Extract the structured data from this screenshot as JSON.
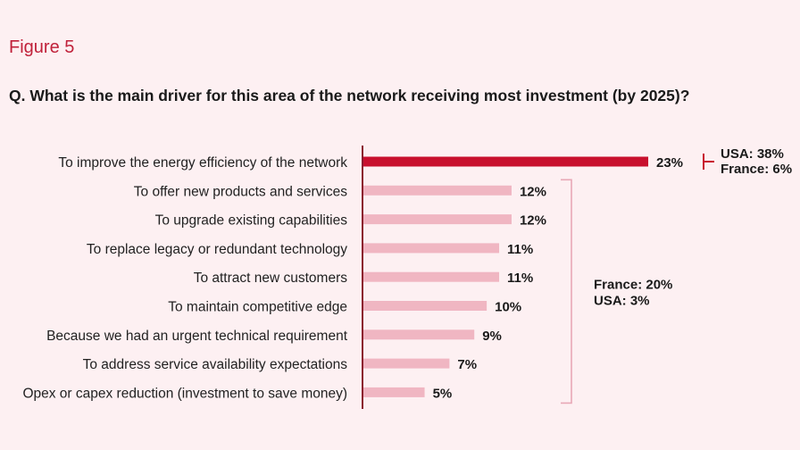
{
  "figure_label": "Figure 5",
  "question": "Q. What is the main driver for this area of the network receiving most investment (by 2025)?",
  "colors": {
    "highlight": "#c8102e",
    "bar": "#f0b6c2",
    "bracket": "#e8a8b6",
    "axis": "#8b1a2e",
    "background": "#fdf0f2"
  },
  "chart_data": {
    "type": "bar",
    "orientation": "horizontal",
    "categories": [
      "To improve the energy efficiency of the network",
      "To offer new products and services",
      "To upgrade existing capabilities",
      "To replace legacy or redundant technology",
      "To attract new customers",
      "To maintain competitive edge",
      "Because we had an urgent technical requirement",
      "To address service availability expectations",
      "Opex or capex reduction (investment to save money)"
    ],
    "values": [
      23,
      12,
      12,
      11,
      11,
      10,
      9,
      7,
      5
    ],
    "value_labels": [
      "23%",
      "12%",
      "12%",
      "11%",
      "11%",
      "10%",
      "9%",
      "7%",
      "5%"
    ],
    "highlighted_index": 0,
    "xlim": [
      0,
      23
    ],
    "annotations": [
      {
        "applies_to": [
          0
        ],
        "lines": [
          "USA: 38%",
          "France: 6%"
        ]
      },
      {
        "applies_to": [
          1,
          2,
          3,
          4,
          5,
          6,
          7,
          8
        ],
        "lines": [
          "France: 20%",
          "USA: 3%"
        ]
      }
    ]
  }
}
